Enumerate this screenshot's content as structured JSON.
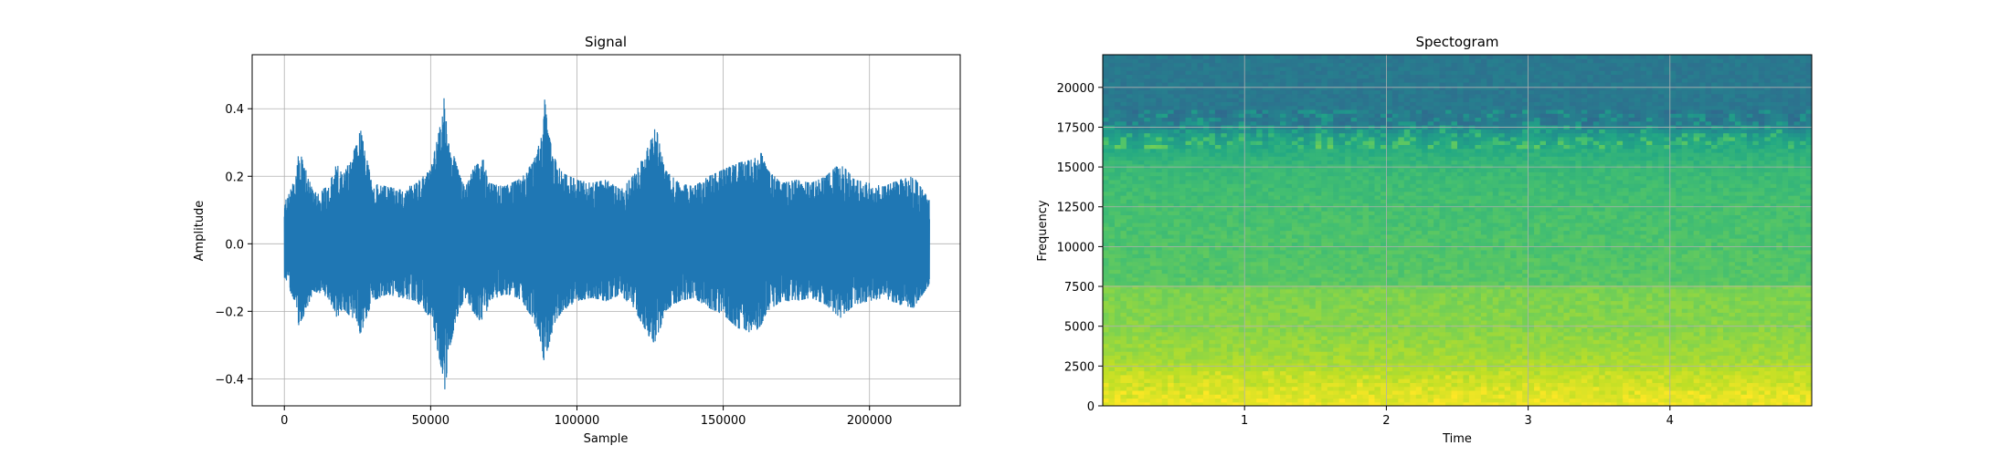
{
  "chart_data": [
    {
      "type": "line",
      "title": "Signal",
      "xlabel": "Sample",
      "ylabel": "Amplitude",
      "xlim": [
        -11000,
        231000
      ],
      "ylim": [
        -0.48,
        0.56
      ],
      "xticks": [
        0,
        50000,
        100000,
        150000,
        200000
      ],
      "xtick_labels": [
        "0",
        "50000",
        "100000",
        "150000",
        "200000"
      ],
      "yticks": [
        -0.4,
        -0.2,
        0.0,
        0.2,
        0.4
      ],
      "ytick_labels": [
        "−0.4",
        "−0.2",
        "0.0",
        "0.2",
        "0.4"
      ],
      "grid": true,
      "color": "#1f77b4",
      "x_range": [
        0,
        220500
      ],
      "envelope": {
        "x": [
          0,
          4000,
          5000,
          10000,
          15000,
          18000,
          20000,
          25000,
          26000,
          30000,
          35000,
          40000,
          45000,
          50000,
          52000,
          54000,
          55000,
          56000,
          58000,
          60000,
          62000,
          65000,
          68000,
          70000,
          75000,
          80000,
          85000,
          88000,
          89000,
          90000,
          92000,
          95000,
          100000,
          105000,
          110000,
          115000,
          120000,
          125000,
          127000,
          130000,
          135000,
          140000,
          145000,
          150000,
          155000,
          160000,
          163000,
          165000,
          170000,
          175000,
          180000,
          185000,
          190000,
          195000,
          200000,
          205000,
          210000,
          215000,
          220500
        ],
        "upper": [
          0.12,
          0.2,
          0.28,
          0.15,
          0.17,
          0.24,
          0.2,
          0.3,
          0.34,
          0.18,
          0.17,
          0.16,
          0.18,
          0.22,
          0.3,
          0.38,
          0.51,
          0.3,
          0.26,
          0.2,
          0.17,
          0.23,
          0.25,
          0.18,
          0.17,
          0.19,
          0.24,
          0.32,
          0.43,
          0.34,
          0.26,
          0.21,
          0.19,
          0.18,
          0.19,
          0.16,
          0.21,
          0.3,
          0.35,
          0.22,
          0.18,
          0.17,
          0.2,
          0.22,
          0.24,
          0.25,
          0.27,
          0.22,
          0.18,
          0.19,
          0.18,
          0.2,
          0.24,
          0.19,
          0.18,
          0.17,
          0.19,
          0.2,
          0.13
        ],
        "lower": [
          -0.1,
          -0.18,
          -0.25,
          -0.14,
          -0.16,
          -0.22,
          -0.19,
          -0.24,
          -0.27,
          -0.17,
          -0.15,
          -0.16,
          -0.17,
          -0.22,
          -0.3,
          -0.38,
          -0.44,
          -0.33,
          -0.25,
          -0.19,
          -0.16,
          -0.21,
          -0.24,
          -0.17,
          -0.15,
          -0.16,
          -0.22,
          -0.3,
          -0.39,
          -0.33,
          -0.24,
          -0.2,
          -0.17,
          -0.16,
          -0.17,
          -0.15,
          -0.2,
          -0.28,
          -0.3,
          -0.2,
          -0.17,
          -0.16,
          -0.19,
          -0.21,
          -0.25,
          -0.27,
          -0.24,
          -0.2,
          -0.17,
          -0.17,
          -0.16,
          -0.18,
          -0.22,
          -0.18,
          -0.17,
          -0.16,
          -0.18,
          -0.19,
          -0.12
        ]
      }
    },
    {
      "type": "heatmap",
      "title": "Spectogram",
      "xlabel": "Time",
      "ylabel": "Frequency",
      "xlim": [
        0,
        5.0
      ],
      "ylim": [
        0,
        22050
      ],
      "xticks": [
        1,
        2,
        3,
        4
      ],
      "xtick_labels": [
        "1",
        "2",
        "3",
        "4"
      ],
      "yticks": [
        0,
        2500,
        5000,
        7500,
        10000,
        12500,
        15000,
        17500,
        20000
      ],
      "ytick_labels": [
        "0",
        "2500",
        "5000",
        "7500",
        "10000",
        "12500",
        "15000",
        "17500",
        "20000"
      ],
      "grid": true,
      "colormap": "viridis",
      "intensity_profile": {
        "freq": [
          0,
          1500,
          3000,
          5000,
          7500,
          7600,
          10000,
          12500,
          15000,
          16200,
          17000,
          17500,
          17600,
          22050
        ],
        "level": [
          0.97,
          0.92,
          0.86,
          0.82,
          0.8,
          0.74,
          0.72,
          0.7,
          0.67,
          0.62,
          0.55,
          0.46,
          0.4,
          0.4
        ]
      }
    }
  ]
}
